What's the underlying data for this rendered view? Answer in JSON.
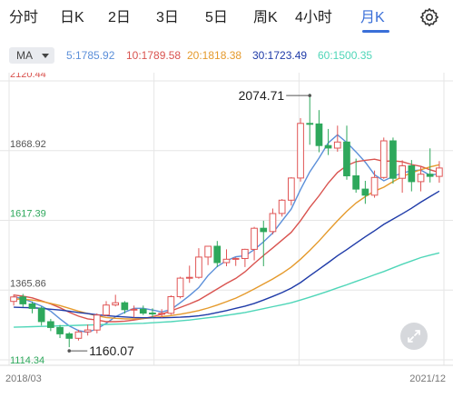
{
  "tabs": [
    {
      "label": "分时",
      "active": false
    },
    {
      "label": "日K",
      "active": false
    },
    {
      "label": "2日",
      "active": false
    },
    {
      "label": "3日",
      "active": false
    },
    {
      "label": "5日",
      "active": false
    },
    {
      "label": "周K",
      "active": false
    },
    {
      "label": "4小时",
      "active": false
    },
    {
      "label": "月K",
      "active": true
    }
  ],
  "settings_icon": "gear-icon",
  "indicator": {
    "selected": "MA",
    "ma": [
      {
        "text": "5:1785.92",
        "color": "#5b8fd9"
      },
      {
        "text": "10:1789.58",
        "color": "#d9534f"
      },
      {
        "text": "20:1818.38",
        "color": "#e59a2c"
      },
      {
        "text": "30:1723.49",
        "color": "#1f3ba8"
      },
      {
        "text": "60:1500.35",
        "color": "#4fd6b8"
      }
    ]
  },
  "colors": {
    "up": "#e05555",
    "down": "#2ea85c",
    "grid": "#e6e6e6",
    "top_label": "#d9534f",
    "bottom_label": "#2ea85c",
    "accent": "#3a6fd8"
  },
  "chart_data": {
    "type": "candlestick",
    "y_labels": [
      "2120.44",
      "1868.92",
      "1617.39",
      "1365.86",
      "1114.34"
    ],
    "ylim": [
      1114.34,
      2120.44
    ],
    "x_start": "2018/03",
    "x_end": "2021/12",
    "max_annotation": "2074.71",
    "min_annotation": "1160.07",
    "candles": [
      [
        1325,
        1341,
        1310,
        1350
      ],
      [
        1341,
        1316,
        1305,
        1352
      ],
      [
        1316,
        1300,
        1282,
        1325
      ],
      [
        1300,
        1252,
        1238,
        1307
      ],
      [
        1252,
        1231,
        1218,
        1262
      ],
      [
        1231,
        1208,
        1193,
        1240
      ],
      [
        1208,
        1192,
        1160,
        1214
      ],
      [
        1192,
        1215,
        1184,
        1223
      ],
      [
        1215,
        1222,
        1202,
        1242
      ],
      [
        1222,
        1276,
        1210,
        1282
      ],
      [
        1276,
        1312,
        1272,
        1326
      ],
      [
        1312,
        1320,
        1307,
        1349
      ],
      [
        1320,
        1295,
        1281,
        1326
      ],
      [
        1295,
        1297,
        1267,
        1310
      ],
      [
        1297,
        1283,
        1276,
        1310
      ],
      [
        1283,
        1282,
        1266,
        1300
      ],
      [
        1282,
        1282,
        1266,
        1297
      ],
      [
        1282,
        1342,
        1277,
        1347
      ],
      [
        1342,
        1409,
        1336,
        1414
      ],
      [
        1409,
        1412,
        1392,
        1454
      ],
      [
        1412,
        1485,
        1407,
        1517
      ],
      [
        1485,
        1524,
        1456,
        1525
      ],
      [
        1524,
        1465,
        1449,
        1543
      ],
      [
        1465,
        1477,
        1452,
        1513
      ],
      [
        1477,
        1480,
        1453,
        1484
      ],
      [
        1480,
        1513,
        1449,
        1515
      ],
      [
        1513,
        1589,
        1473,
        1594
      ],
      [
        1589,
        1577,
        1452,
        1616
      ],
      [
        1577,
        1642,
        1567,
        1660
      ],
      [
        1642,
        1690,
        1631,
        1694
      ],
      [
        1690,
        1770,
        1671,
        1773
      ],
      [
        1770,
        1967,
        1757,
        1986
      ],
      [
        1967,
        1965,
        1890,
        2074
      ],
      [
        1965,
        1887,
        1863,
        2015
      ],
      [
        1887,
        1878,
        1853,
        1947
      ],
      [
        1878,
        1900,
        1865,
        1959
      ],
      [
        1900,
        1778,
        1764,
        1959
      ],
      [
        1778,
        1730,
        1717,
        1840
      ],
      [
        1730,
        1708,
        1677,
        1760
      ],
      [
        1708,
        1772,
        1699,
        1797
      ],
      [
        1772,
        1904,
        1767,
        1916
      ],
      [
        1904,
        1769,
        1750,
        1916
      ],
      [
        1769,
        1814,
        1717,
        1834
      ],
      [
        1814,
        1757,
        1722,
        1835
      ],
      [
        1757,
        1784,
        1722,
        1814
      ],
      [
        1784,
        1776,
        1754,
        1877
      ],
      [
        1776,
        1806,
        1753,
        1831
      ]
    ],
    "ma_series": [
      {
        "name": "5",
        "color": "#5b8fd9",
        "values": [
          1342,
          1335,
          1322,
          1308,
          1290,
          1262,
          1237,
          1220,
          1214,
          1226,
          1246,
          1270,
          1286,
          1300,
          1300,
          1294,
          1287,
          1296,
          1320,
          1346,
          1375,
          1418,
          1451,
          1472,
          1486,
          1490,
          1512,
          1540,
          1572,
          1615,
          1658,
          1728,
          1792,
          1842,
          1897,
          1926,
          1898,
          1864,
          1827,
          1782,
          1760,
          1776,
          1788,
          1796,
          1799,
          1780,
          1786
        ]
      },
      {
        "name": "10",
        "color": "#d9534f",
        "values": [
          1348,
          1344,
          1338,
          1327,
          1316,
          1302,
          1286,
          1272,
          1262,
          1258,
          1252,
          1252,
          1254,
          1258,
          1263,
          1270,
          1279,
          1291,
          1303,
          1316,
          1330,
          1350,
          1370,
          1390,
          1408,
          1432,
          1462,
          1491,
          1518,
          1546,
          1574,
          1616,
          1664,
          1706,
          1752,
          1790,
          1815,
          1829,
          1834,
          1838,
          1830,
          1832,
          1829,
          1819,
          1812,
          1800,
          1790
        ]
      },
      {
        "name": "20",
        "color": "#e59a2c",
        "values": [
          1334,
          1333,
          1330,
          1325,
          1318,
          1310,
          1300,
          1290,
          1281,
          1273,
          1267,
          1264,
          1262,
          1262,
          1263,
          1266,
          1270,
          1274,
          1279,
          1285,
          1292,
          1301,
          1312,
          1324,
          1337,
          1353,
          1370,
          1388,
          1406,
          1426,
          1449,
          1477,
          1509,
          1543,
          1580,
          1616,
          1650,
          1680,
          1703,
          1723,
          1737,
          1757,
          1775,
          1789,
          1800,
          1810,
          1818
        ]
      },
      {
        "name": "30",
        "color": "#1f3ba8",
        "values": [
          1304,
          1303,
          1302,
          1300,
          1297,
          1294,
          1290,
          1285,
          1281,
          1277,
          1274,
          1271,
          1269,
          1267,
          1266,
          1266,
          1266,
          1267,
          1268,
          1270,
          1273,
          1278,
          1285,
          1292,
          1300,
          1308,
          1318,
          1330,
          1343,
          1357,
          1373,
          1393,
          1417,
          1441,
          1465,
          1490,
          1512,
          1535,
          1558,
          1580,
          1603,
          1622,
          1641,
          1661,
          1683,
          1703,
          1723
        ]
      },
      {
        "name": "60",
        "color": "#4fd6b8",
        "values": [
          1232,
          1233,
          1234,
          1235,
          1236,
          1237,
          1238,
          1239,
          1240,
          1241,
          1242,
          1243,
          1244,
          1245,
          1246,
          1248,
          1250,
          1252,
          1255,
          1258,
          1262,
          1266,
          1270,
          1275,
          1280,
          1285,
          1292,
          1299,
          1306,
          1313,
          1320,
          1330,
          1340,
          1351,
          1362,
          1374,
          1385,
          1397,
          1409,
          1421,
          1433,
          1446,
          1459,
          1471,
          1483,
          1492,
          1500
        ]
      }
    ]
  }
}
